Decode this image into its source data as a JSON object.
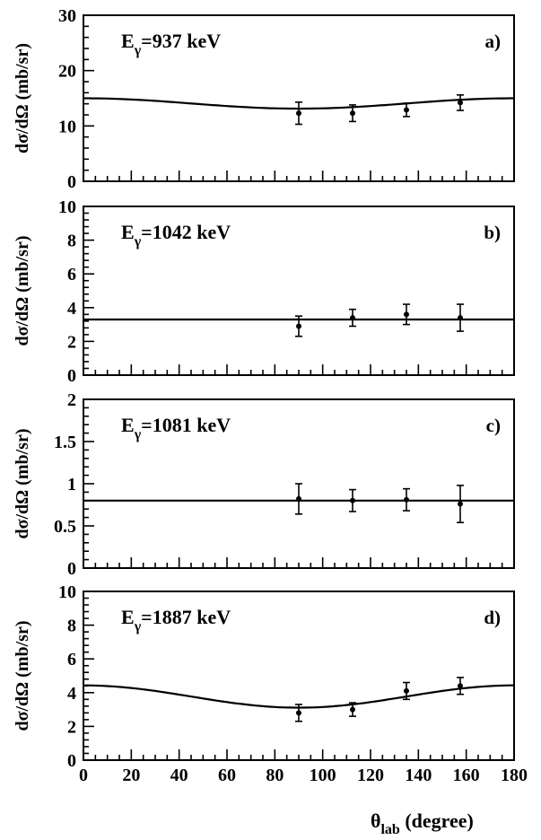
{
  "chart_data": [
    {
      "type": "scatter",
      "energy_label": "E",
      "energy_sub": "γ",
      "energy_value": "=937 keV",
      "panel": "a)",
      "ylabel": "dσ/dΩ (mb/sr)",
      "ylim": [
        0,
        30
      ],
      "yticks": [
        0,
        10,
        20,
        30
      ],
      "ytick_labels": [
        "0",
        "10",
        "20",
        "30"
      ],
      "x": [
        90,
        112.5,
        135,
        157.5
      ],
      "y": [
        12.3,
        12.3,
        12.9,
        14.2
      ],
      "yerr": [
        2.0,
        1.5,
        1.2,
        1.4
      ],
      "fit": {
        "kind": "legendre",
        "c0": 13.75,
        "c2": 1.25
      }
    },
    {
      "type": "scatter",
      "energy_label": "E",
      "energy_sub": "γ",
      "energy_value": "=1042 keV",
      "panel": "b)",
      "ylabel": "dσ/dΩ (mb/sr)",
      "ylim": [
        0,
        10
      ],
      "yticks": [
        0,
        2,
        4,
        6,
        8,
        10
      ],
      "ytick_labels": [
        "0",
        "2",
        "4",
        "6",
        "8",
        "10"
      ],
      "x": [
        90,
        112.5,
        135,
        157.5
      ],
      "y": [
        2.9,
        3.4,
        3.6,
        3.4
      ],
      "yerr": [
        0.6,
        0.5,
        0.6,
        0.8
      ],
      "fit": {
        "kind": "constant",
        "c0": 3.3
      }
    },
    {
      "type": "scatter",
      "energy_label": "E",
      "energy_sub": "γ",
      "energy_value": "=1081 keV",
      "panel": "c)",
      "ylabel": "dσ/dΩ (mb/sr)",
      "ylim": [
        0,
        2
      ],
      "yticks": [
        0,
        0.5,
        1,
        1.5,
        2
      ],
      "ytick_labels": [
        "0",
        "0.5",
        "1",
        "1.5",
        "2"
      ],
      "x": [
        90,
        112.5,
        135,
        157.5
      ],
      "y": [
        0.82,
        0.8,
        0.81,
        0.76
      ],
      "yerr": [
        0.18,
        0.13,
        0.13,
        0.22
      ],
      "fit": {
        "kind": "constant",
        "c0": 0.8
      }
    },
    {
      "type": "scatter",
      "energy_label": "E",
      "energy_sub": "γ",
      "energy_value": "=1887 keV",
      "panel": "d)",
      "ylabel": "dσ/dΩ (mb/sr)",
      "ylim": [
        0,
        10
      ],
      "yticks": [
        0,
        2,
        4,
        6,
        8,
        10
      ],
      "ytick_labels": [
        "0",
        "2",
        "4",
        "6",
        "8",
        "10"
      ],
      "x": [
        90,
        112.5,
        135,
        157.5
      ],
      "y": [
        2.8,
        3.0,
        4.1,
        4.4
      ],
      "yerr": [
        0.5,
        0.4,
        0.5,
        0.5
      ],
      "fit": {
        "kind": "legendre",
        "c0": 3.55,
        "c2": 0.88
      }
    }
  ],
  "xaxis": {
    "xlim": [
      0,
      180
    ],
    "xticks": [
      0,
      20,
      40,
      60,
      80,
      100,
      120,
      140,
      160,
      180
    ],
    "xtick_labels": [
      "0",
      "20",
      "40",
      "60",
      "80",
      "100",
      "120",
      "140",
      "160",
      "180"
    ],
    "label_main": "θ",
    "label_sub": "lab",
    "label_rest": " (degree)"
  }
}
